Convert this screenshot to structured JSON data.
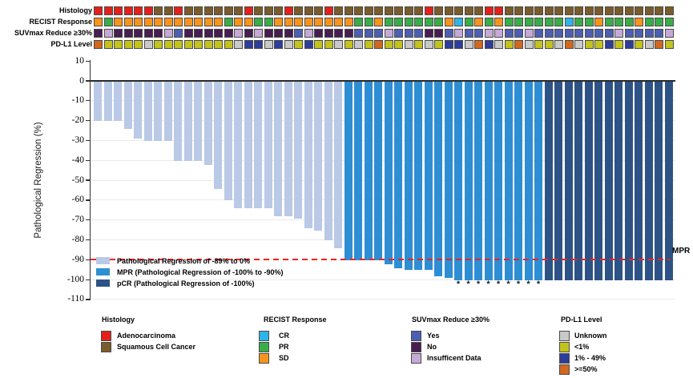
{
  "tracks": {
    "rows": [
      {
        "label": "Histology",
        "legend_key": "histology",
        "values": [
          "A",
          "A",
          "A",
          "A",
          "A",
          "A",
          "S",
          "S",
          "A",
          "S",
          "S",
          "S",
          "S",
          "S",
          "S",
          "A",
          "S",
          "S",
          "S",
          "A",
          "S",
          "S",
          "S",
          "A",
          "S",
          "S",
          "S",
          "S",
          "S",
          "S",
          "S",
          "S",
          "S",
          "A",
          "S",
          "S",
          "S",
          "S",
          "S",
          "A",
          "A",
          "S",
          "S",
          "S",
          "S",
          "S",
          "S",
          "S",
          "S",
          "S",
          "S",
          "S",
          "S",
          "S",
          "S",
          "S",
          "S",
          "S"
        ]
      },
      {
        "label": "RECIST Response",
        "legend_key": "recist",
        "values": [
          "SD",
          "PR",
          "SD",
          "SD",
          "SD",
          "SD",
          "SD",
          "SD",
          "SD",
          "SD",
          "SD",
          "SD",
          "SD",
          "PR",
          "SD",
          "SD",
          "PR",
          "PR",
          "SD",
          "SD",
          "SD",
          "SD",
          "SD",
          "SD",
          "SD",
          "SD",
          "PR",
          "PR",
          "SD",
          "PR",
          "PR",
          "PR",
          "PR",
          "PR",
          "PR",
          "SD",
          "CR",
          "PR",
          "SD",
          "PR",
          "SD",
          "PR",
          "PR",
          "PR",
          "PR",
          "PR",
          "PR",
          "CR",
          "PR",
          "PR",
          "SD",
          "PR",
          "PR",
          "PR",
          "SD",
          "PR",
          "PR",
          "PR"
        ]
      },
      {
        "label": "SUVmax Reduce ≥30%",
        "legend_key": "suvmax",
        "values": [
          "N",
          "I",
          "N",
          "N",
          "N",
          "N",
          "N",
          "I",
          "Y",
          "N",
          "N",
          "N",
          "N",
          "N",
          "I",
          "N",
          "I",
          "N",
          "N",
          "N",
          "Y",
          "I",
          "N",
          "N",
          "N",
          "N",
          "Y",
          "Y",
          "Y",
          "I",
          "Y",
          "Y",
          "Y",
          "N",
          "N",
          "Y",
          "I",
          "Y",
          "Y",
          "I",
          "I",
          "Y",
          "Y",
          "I",
          "Y",
          "Y",
          "Y",
          "Y",
          "Y",
          "Y",
          "Y",
          "Y",
          "I",
          "Y",
          "Y",
          "Y",
          "Y",
          "I"
        ]
      },
      {
        "label": "PD-L1 Level",
        "legend_key": "pdl1",
        "values": [
          "H",
          "L",
          "L",
          "L",
          "L",
          "U",
          "L",
          "L",
          "L",
          "L",
          "L",
          "L",
          "L",
          "L",
          "U",
          "M",
          "M",
          "U",
          "M",
          "U",
          "L",
          "M",
          "L",
          "L",
          "U",
          "L",
          "U",
          "L",
          "H",
          "L",
          "L",
          "U",
          "L",
          "U",
          "L",
          "M",
          "M",
          "U",
          "H",
          "M",
          "U",
          "L",
          "H",
          "U",
          "L",
          "L",
          "U",
          "H",
          "U",
          "L",
          "L",
          "M",
          "L",
          "M",
          "L",
          "U",
          "H",
          "L"
        ]
      }
    ]
  },
  "chart_data": {
    "type": "bar",
    "title": "",
    "xlabel": "",
    "ylabel": "Pathological Regression (%)",
    "ylim": [
      -110,
      10
    ],
    "yticks": [
      10,
      0,
      -10,
      -20,
      -30,
      -40,
      -50,
      -60,
      -70,
      -80,
      -90,
      -100,
      -110
    ],
    "grid": true,
    "bar_values": [
      -20,
      -20,
      -20,
      -24,
      -29,
      -30,
      -30,
      -30,
      -40,
      -40,
      -40,
      -42,
      -54,
      -60,
      -64,
      -64,
      -64,
      -64,
      -68,
      -68,
      -69,
      -74,
      -75,
      -80,
      -84,
      -90,
      -90,
      -90,
      -90,
      -92,
      -94,
      -95,
      -95,
      -95,
      -98,
      -99,
      -100,
      -100,
      -100,
      -100,
      -100,
      -100,
      -100,
      -100,
      -100,
      -100,
      -100,
      -100,
      -100,
      -100,
      -100,
      -100,
      -100,
      -100,
      -100,
      -100,
      -100,
      -100
    ],
    "group_order": [
      "reg",
      "mpr",
      "pcr"
    ],
    "bar_groups": {
      "reg": 25,
      "mpr": 20,
      "pcr": 13
    },
    "asterisk_bar_indices": [
      37,
      38,
      39,
      40,
      41,
      42,
      43,
      44,
      45
    ],
    "asterisk_marker": "*",
    "reference_line": {
      "value": -90,
      "label": "MPR",
      "color": "#ee2424",
      "style": "dashed"
    },
    "series_legend": [
      {
        "key": "reg",
        "label": "Pathological Regression of -89% to 0%",
        "color": "#b9c9e6"
      },
      {
        "key": "mpr",
        "label": "MPR (Pathological Regression of -100% to -90%)",
        "color": "#2e8ed3"
      },
      {
        "key": "pcr",
        "label": "pCR (Pathological Regression of -100%)",
        "color": "#2d5386"
      }
    ]
  },
  "bottom_legend": {
    "groups": [
      {
        "key": "histology",
        "title": "Histology",
        "items": [
          {
            "code": "A",
            "label": "Adenocarcinoma",
            "color": "#e3201b"
          },
          {
            "code": "S",
            "label": "Squamous Cell Cancer",
            "color": "#7a5b2b"
          }
        ]
      },
      {
        "key": "recist",
        "title": "RECIST Response",
        "items": [
          {
            "code": "CR",
            "label": "CR",
            "color": "#2fb4e9"
          },
          {
            "code": "PR",
            "label": "PR",
            "color": "#3aad4a"
          },
          {
            "code": "SD",
            "label": "SD",
            "color": "#f7941e"
          }
        ]
      },
      {
        "key": "suvmax",
        "title": "SUVmax Reduce ≥30%",
        "items": [
          {
            "code": "Y",
            "label": "Yes",
            "color": "#4d5fb3"
          },
          {
            "code": "N",
            "label": "No",
            "color": "#471d52"
          },
          {
            "code": "I",
            "label": "Insufficent Data",
            "color": "#c6a9d6"
          }
        ]
      },
      {
        "key": "pdl1",
        "title": "PD-L1 Level",
        "items": [
          {
            "code": "U",
            "label": "Unknown",
            "color": "#c9c9c9"
          },
          {
            "code": "L",
            "label": "<1%",
            "color": "#c3c31d"
          },
          {
            "code": "M",
            "label": "1% - 49%",
            "color": "#2e3d9a"
          },
          {
            "code": "H",
            "label": ">=50%",
            "color": "#d2671e"
          }
        ]
      }
    ]
  },
  "colors": {
    "background": "#ffffff",
    "zero_line": "#2a2a2a",
    "gridline": "#eaeaea",
    "axis": "#333333",
    "square_border": "#4a4a4a"
  }
}
